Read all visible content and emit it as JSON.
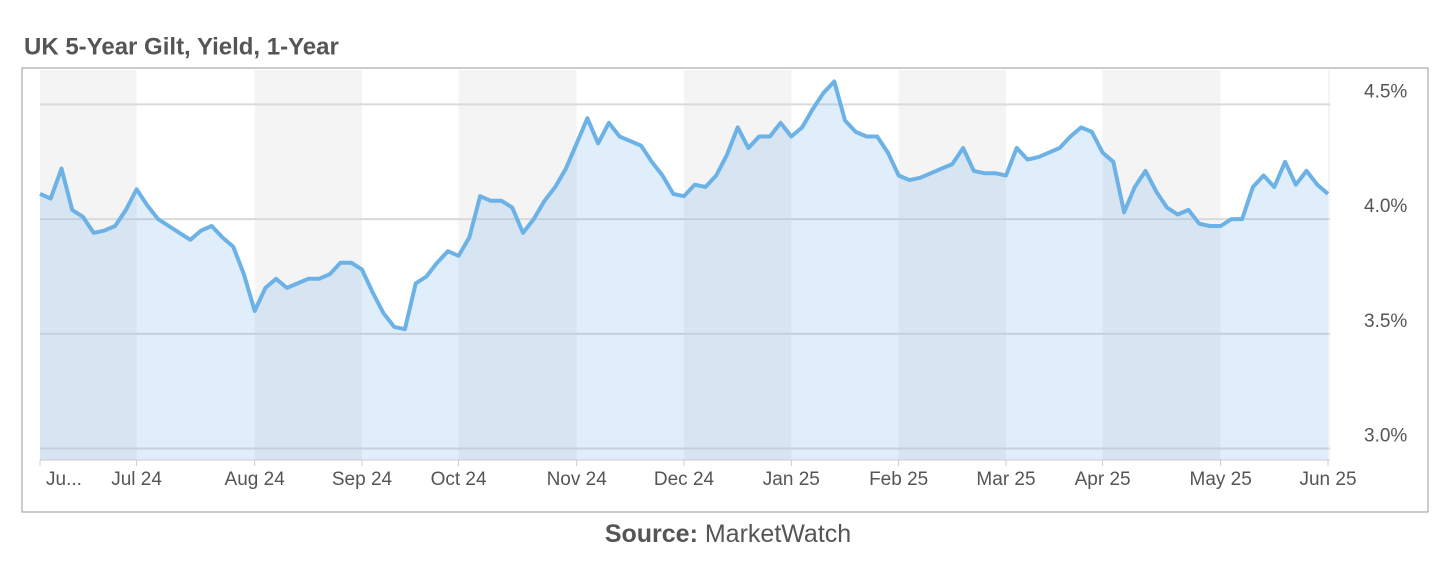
{
  "chart_data": {
    "type": "line",
    "title": "UK 5-Year Gilt, Yield, 1-Year",
    "categories": [
      "Ju...",
      null,
      null,
      null,
      null,
      null,
      null,
      null,
      null,
      "Jul 24",
      null,
      null,
      null,
      null,
      null,
      null,
      null,
      null,
      null,
      null,
      "Aug 24",
      null,
      null,
      null,
      null,
      null,
      null,
      null,
      null,
      null,
      "Sep 24",
      null,
      null,
      null,
      null,
      null,
      null,
      null,
      null,
      "Oct 24",
      null,
      null,
      null,
      null,
      null,
      null,
      null,
      null,
      null,
      null,
      "Nov 24",
      null,
      null,
      null,
      null,
      null,
      null,
      null,
      null,
      null,
      "Dec 24",
      null,
      null,
      null,
      null,
      null,
      null,
      null,
      null,
      null,
      "Jan 25",
      null,
      null,
      null,
      null,
      null,
      null,
      null,
      null,
      null,
      "Feb 25",
      null,
      null,
      null,
      null,
      null,
      null,
      null,
      null,
      null,
      "Mar 25",
      null,
      null,
      null,
      null,
      null,
      null,
      null,
      null,
      "Apr 25",
      null,
      null,
      null,
      null,
      null,
      null,
      null,
      null,
      null,
      null,
      "May 25",
      null,
      null,
      null,
      null,
      null,
      null,
      null,
      null,
      null,
      "Jun 25"
    ],
    "series": [
      {
        "name": "UK 5-Year Gilt Yield",
        "color": "#6cb2e6",
        "values": [
          4.11,
          4.09,
          4.22,
          4.04,
          4.01,
          3.94,
          3.95,
          3.97,
          4.04,
          4.13,
          4.06,
          4.0,
          3.97,
          3.94,
          3.91,
          3.95,
          3.97,
          3.92,
          3.88,
          3.76,
          3.6,
          3.7,
          3.74,
          3.7,
          3.72,
          3.74,
          3.74,
          3.76,
          3.81,
          3.81,
          3.78,
          3.68,
          3.59,
          3.53,
          3.52,
          3.72,
          3.75,
          3.81,
          3.86,
          3.84,
          3.92,
          4.1,
          4.08,
          4.08,
          4.05,
          3.94,
          4.0,
          4.08,
          4.14,
          4.22,
          4.33,
          4.44,
          4.33,
          4.42,
          4.36,
          4.34,
          4.32,
          4.25,
          4.19,
          4.11,
          4.1,
          4.15,
          4.14,
          4.19,
          4.28,
          4.4,
          4.31,
          4.36,
          4.36,
          4.42,
          4.36,
          4.4,
          4.48,
          4.55,
          4.6,
          4.43,
          4.38,
          4.36,
          4.36,
          4.29,
          4.19,
          4.17,
          4.18,
          4.2,
          4.22,
          4.24,
          4.31,
          4.21,
          4.2,
          4.2,
          4.19,
          4.31,
          4.26,
          4.27,
          4.29,
          4.31,
          4.36,
          4.4,
          4.38,
          4.29,
          4.25,
          4.03,
          4.14,
          4.21,
          4.12,
          4.05,
          4.02,
          4.04,
          3.98,
          3.97,
          3.97,
          4.0,
          4.0,
          4.14,
          4.19,
          4.14,
          4.25,
          4.15,
          4.21,
          4.15,
          4.11
        ]
      }
    ],
    "ylim": [
      2.95,
      4.65
    ],
    "yticks": [
      {
        "value": 3,
        "label": "3.0%"
      },
      {
        "value": 3.5,
        "label": "3.5%"
      },
      {
        "value": 4,
        "label": "4.0%"
      },
      {
        "value": 4.5,
        "label": "4.5%"
      }
    ],
    "grid": true
  },
  "footer": {
    "label": "Source:",
    "text": "MarketWatch"
  }
}
